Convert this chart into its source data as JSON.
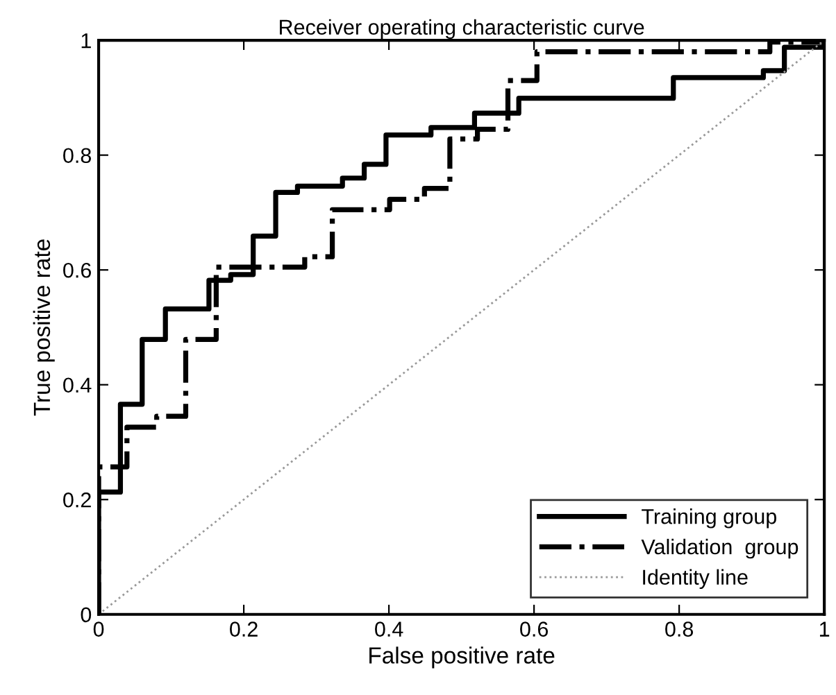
{
  "chart_data": {
    "type": "line",
    "title": "Receiver operating characteristic curve",
    "xlabel": "False positive rate",
    "ylabel": "True positive rate",
    "xlim": [
      0,
      1
    ],
    "ylim": [
      0,
      1
    ],
    "xticks": [
      0,
      0.2,
      0.4,
      0.6,
      0.8,
      1
    ],
    "yticks": [
      0,
      0.2,
      0.4,
      0.6,
      0.8,
      1
    ],
    "grid": false,
    "legend": "bottom right",
    "marker": "none",
    "series": [
      {
        "name": "Training group",
        "color": "#000000",
        "line_style": "solid",
        "x": [
          0,
          0,
          0.03,
          0.03,
          0.06,
          0.06,
          0.092,
          0.092,
          0.152,
          0.152,
          0.182,
          0.182,
          0.213,
          0.213,
          0.244,
          0.244,
          0.274,
          0.274,
          0.336,
          0.336,
          0.366,
          0.366,
          0.396,
          0.396,
          0.458,
          0.458,
          0.518,
          0.518,
          0.579,
          0.579,
          0.792,
          0.792,
          0.916,
          0.916,
          0.945,
          0.945,
          1,
          1
        ],
        "values": [
          0,
          0.213,
          0.213,
          0.366,
          0.366,
          0.479,
          0.479,
          0.532,
          0.532,
          0.582,
          0.582,
          0.592,
          0.592,
          0.659,
          0.659,
          0.735,
          0.735,
          0.746,
          0.746,
          0.76,
          0.76,
          0.784,
          0.784,
          0.835,
          0.835,
          0.848,
          0.848,
          0.873,
          0.873,
          0.899,
          0.899,
          0.935,
          0.935,
          0.947,
          0.947,
          0.988,
          0.988,
          1
        ]
      },
      {
        "name": "Validation  group",
        "color": "#000000",
        "line_style": "dashdot",
        "x": [
          0,
          0,
          0.039,
          0.039,
          0.08,
          0.08,
          0.12,
          0.12,
          0.162,
          0.162,
          0.284,
          0.284,
          0.322,
          0.322,
          0.401,
          0.401,
          0.449,
          0.449,
          0.484,
          0.484,
          0.522,
          0.522,
          0.564,
          0.564,
          0.604,
          0.604,
          0.925,
          0.925,
          1
        ],
        "values": [
          0,
          0.257,
          0.257,
          0.326,
          0.326,
          0.345,
          0.345,
          0.479,
          0.479,
          0.605,
          0.605,
          0.623,
          0.623,
          0.705,
          0.705,
          0.723,
          0.723,
          0.742,
          0.742,
          0.828,
          0.828,
          0.845,
          0.845,
          0.93,
          0.93,
          0.98,
          0.98,
          0.997,
          0.997
        ]
      },
      {
        "name": "Identity line",
        "color": "#999999",
        "line_style": "dotted",
        "x": [
          0,
          1
        ],
        "values": [
          0,
          1
        ]
      }
    ]
  }
}
